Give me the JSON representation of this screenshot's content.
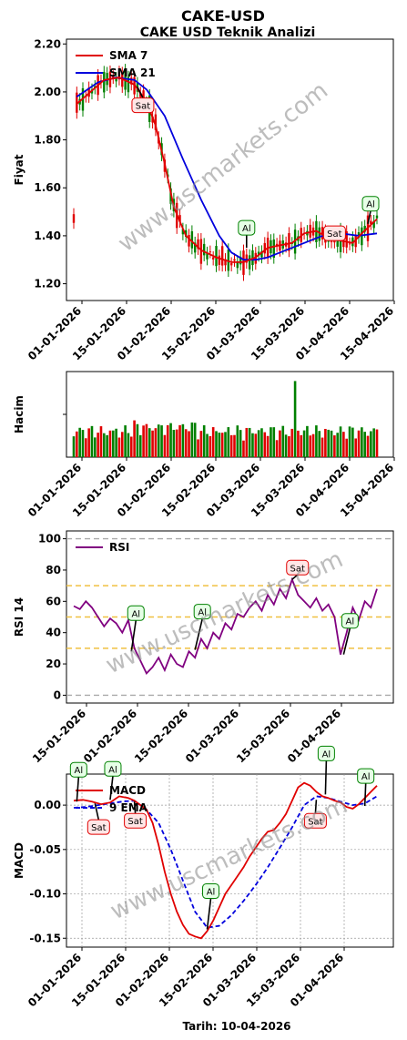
{
  "title": "CAKE-USD",
  "footer": "Tarih: 10-04-2026",
  "watermark": "www.uscmarkets.com",
  "colors": {
    "up": "#008000",
    "down": "#e00000",
    "sma7": "#e00000",
    "sma21": "#0000dd",
    "rsi": "#800080",
    "macd": "#e00000",
    "signal": "#0000dd"
  },
  "chart_data": [
    {
      "id": "price",
      "type": "line",
      "title": "CAKE USD Teknik Analizi",
      "ylabel": "Fiyat",
      "ylim": [
        1.13,
        2.22
      ],
      "yticks": [
        1.2,
        1.4,
        1.6,
        1.8,
        2.0,
        2.2
      ],
      "ytick_labels": [
        "1.20",
        "1.40",
        "1.60",
        "1.80",
        "2.00",
        "2.20"
      ],
      "xticks": [
        "01-01-2026",
        "15-01-2026",
        "01-02-2026",
        "15-02-2026",
        "01-03-2026",
        "15-03-2026",
        "01-04-2026",
        "15-04-2026"
      ],
      "legend": "top-left",
      "series": [
        {
          "name": "SMA 7",
          "x": [
            1,
            10,
            15,
            20,
            24,
            27,
            30,
            33,
            37,
            42,
            47,
            52,
            56,
            60,
            64,
            68,
            72,
            76,
            80,
            84,
            88,
            92,
            95,
            100
          ],
          "values": [
            1.95,
            2.05,
            2.06,
            2.03,
            1.96,
            1.86,
            1.7,
            1.52,
            1.4,
            1.34,
            1.31,
            1.29,
            1.29,
            1.31,
            1.35,
            1.36,
            1.37,
            1.41,
            1.42,
            1.39,
            1.38,
            1.37,
            1.41,
            1.47
          ]
        },
        {
          "name": "SMA 21",
          "x": [
            1,
            8,
            14,
            20,
            24,
            30,
            36,
            42,
            48,
            52,
            56,
            60,
            64,
            70,
            76,
            82,
            88,
            94,
            100
          ],
          "values": [
            1.98,
            2.04,
            2.06,
            2.05,
            2.01,
            1.9,
            1.72,
            1.55,
            1.4,
            1.33,
            1.3,
            1.3,
            1.31,
            1.34,
            1.37,
            1.4,
            1.41,
            1.4,
            1.41
          ]
        }
      ],
      "annotations": [
        {
          "label": "Sat",
          "x": 21,
          "y": 2.02
        },
        {
          "label": "Al",
          "x": 57,
          "y": 1.35
        },
        {
          "label": "Sat",
          "x": 86,
          "y": 1.38
        },
        {
          "label": "Al",
          "x": 97,
          "y": 1.45
        }
      ]
    },
    {
      "id": "volume",
      "type": "bar",
      "ylabel": "Hacim",
      "xticks": [
        "01-01-2026",
        "15-01-2026",
        "01-02-2026",
        "15-02-2026",
        "01-03-2026",
        "15-03-2026",
        "01-04-2026",
        "15-04-2026"
      ]
    },
    {
      "id": "rsi",
      "type": "line",
      "ylabel": "RSI 14",
      "ylim": [
        -5,
        105
      ],
      "yticks": [
        0,
        20,
        40,
        60,
        80,
        100
      ],
      "ytick_labels": [
        "0",
        "20",
        "40",
        "60",
        "80",
        "100"
      ],
      "hlines": [
        0,
        30,
        50,
        70,
        100
      ],
      "xticks": [
        "15-01-2026",
        "01-02-2026",
        "15-02-2026",
        "01-03-2026",
        "15-03-2026",
        "01-04-2026"
      ],
      "legend": "top-left",
      "series": [
        {
          "name": "RSI",
          "x": [
            0,
            2,
            4,
            6,
            8,
            10,
            12,
            14,
            16,
            18,
            20,
            22,
            24,
            26,
            28,
            30,
            32,
            34,
            36,
            38,
            40,
            42,
            44,
            46,
            48,
            50,
            52,
            54,
            56,
            58,
            60,
            62,
            64,
            66,
            68,
            70,
            72,
            74,
            76,
            78,
            80,
            82,
            84,
            86,
            88,
            90,
            92,
            94,
            96,
            98,
            100
          ],
          "values": [
            57,
            55,
            60,
            56,
            50,
            44,
            49,
            46,
            40,
            48,
            30,
            22,
            14,
            18,
            24,
            16,
            26,
            20,
            18,
            28,
            24,
            36,
            30,
            40,
            36,
            46,
            42,
            52,
            50,
            56,
            60,
            54,
            64,
            58,
            68,
            62,
            74,
            64,
            60,
            56,
            62,
            54,
            58,
            50,
            26,
            40,
            56,
            48,
            60,
            56,
            68
          ]
        }
      ],
      "annotations": [
        {
          "label": "Al",
          "x": 19,
          "y": 28
        },
        {
          "label": "Al",
          "x": 40,
          "y": 29
        },
        {
          "label": "Sat",
          "x": 72,
          "y": 74
        },
        {
          "label": "Al",
          "x": 89,
          "y": 26
        }
      ]
    },
    {
      "id": "macd",
      "type": "line",
      "ylabel": "MACD",
      "ylim": [
        -0.16,
        0.035
      ],
      "yticks": [
        0.0,
        -0.05,
        -0.1,
        -0.15
      ],
      "ytick_labels": [
        "0.00",
        "-0.05",
        "-0.10",
        "-0.15"
      ],
      "xticks": [
        "01-01-2026",
        "15-01-2026",
        "01-02-2026",
        "15-02-2026",
        "01-03-2026",
        "15-03-2026",
        "01-04-2026"
      ],
      "legend": "top-left",
      "series": [
        {
          "name": "MACD",
          "x": [
            0,
            3,
            6,
            9,
            12,
            15,
            18,
            20,
            22,
            24,
            26,
            28,
            30,
            32,
            34,
            36,
            38,
            40,
            42,
            44,
            46,
            48,
            50,
            52,
            54,
            56,
            58,
            60,
            62,
            64,
            66,
            68,
            70,
            72,
            74,
            76,
            78,
            80,
            82,
            84,
            86,
            88,
            90,
            92,
            94,
            96,
            98,
            100
          ],
          "values": [
            0.005,
            0.006,
            0.004,
            0.001,
            0.003,
            0.01,
            0.008,
            0.005,
            0.0,
            -0.005,
            -0.02,
            -0.045,
            -0.075,
            -0.1,
            -0.12,
            -0.135,
            -0.145,
            -0.148,
            -0.15,
            -0.142,
            -0.13,
            -0.115,
            -0.1,
            -0.09,
            -0.08,
            -0.07,
            -0.058,
            -0.048,
            -0.038,
            -0.03,
            -0.028,
            -0.02,
            -0.01,
            0.005,
            0.02,
            0.025,
            0.022,
            0.015,
            0.01,
            0.008,
            0.005,
            0.003,
            -0.002,
            -0.004,
            0.001,
            0.008,
            0.015,
            0.022
          ]
        },
        {
          "name": "9 EMA",
          "x": [
            0,
            4,
            8,
            12,
            16,
            20,
            24,
            28,
            32,
            36,
            40,
            44,
            48,
            52,
            56,
            60,
            64,
            68,
            72,
            76,
            80,
            84,
            88,
            92,
            96,
            100
          ],
          "values": [
            -0.003,
            -0.002,
            0.0,
            0.002,
            0.004,
            0.005,
            -0.005,
            -0.02,
            -0.05,
            -0.085,
            -0.12,
            -0.138,
            -0.136,
            -0.124,
            -0.108,
            -0.09,
            -0.07,
            -0.048,
            -0.025,
            0.0,
            0.01,
            0.008,
            0.004,
            0.0,
            0.002,
            0.01
          ]
        }
      ],
      "annotations": [
        {
          "label": "Al",
          "x": 1,
          "y": 0.004
        },
        {
          "label": "Sat",
          "x": 7,
          "y": 0.002
        },
        {
          "label": "Al",
          "x": 12,
          "y": 0.006
        },
        {
          "label": "Sat",
          "x": 20,
          "y": 0.004
        },
        {
          "label": "Al",
          "x": 44,
          "y": -0.14
        },
        {
          "label": "Al",
          "x": 83,
          "y": 0.012
        },
        {
          "label": "Sat",
          "x": 80,
          "y": 0.006
        },
        {
          "label": "Al",
          "x": 96,
          "y": -0.001
        }
      ]
    }
  ]
}
